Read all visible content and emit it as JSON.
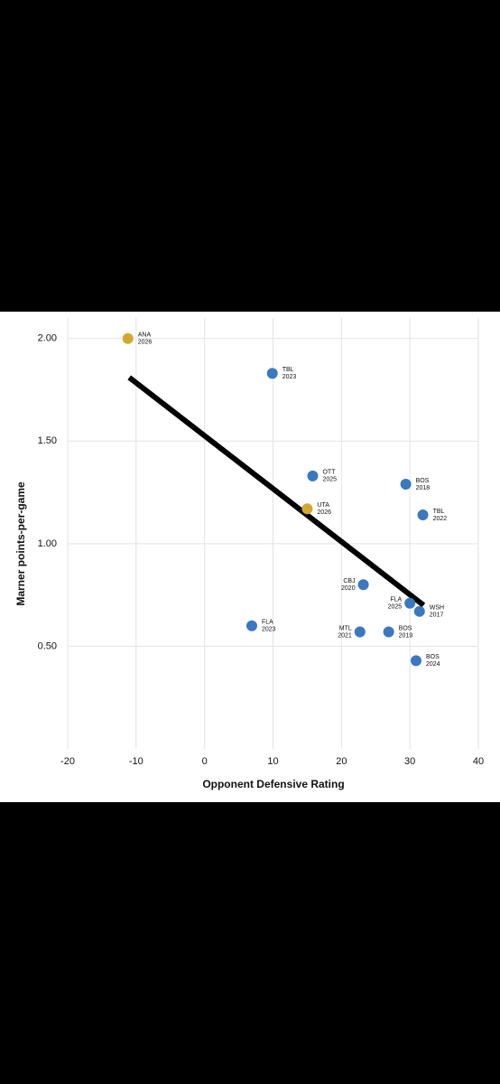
{
  "chart_data": {
    "type": "scatter",
    "x_label": "Opponent Defensive Rating",
    "y_label": "Marner points-per-game",
    "x": [
      -11.2,
      9.9,
      15.8,
      15.0,
      29.4,
      31.9,
      23.2,
      30.0,
      31.4,
      6.9,
      22.7,
      26.9,
      30.9
    ],
    "values": [
      2.0,
      1.83,
      1.33,
      1.17,
      1.29,
      1.14,
      0.8,
      0.71,
      0.67,
      0.6,
      0.57,
      0.57,
      0.43
    ],
    "teams": [
      "ANA",
      "TBL",
      "OTT",
      "UTA",
      "BOS",
      "TBL",
      "CBJ",
      "FLA",
      "WSH",
      "FLA",
      "MTL",
      "BOS",
      "BOS"
    ],
    "seasons": [
      "2026",
      "2023",
      "2025",
      "2026",
      "2018",
      "2022",
      "2020",
      "2025",
      "2017",
      "2023",
      "2021",
      "2019",
      "2024"
    ],
    "colors": [
      "#d4a82c",
      "#3a78bf",
      "#3a78bf",
      "#d4a82c",
      "#3a78bf",
      "#3a78bf",
      "#3a78bf",
      "#3a78bf",
      "#3a78bf",
      "#3a78bf",
      "#3a78bf",
      "#3a78bf",
      "#3a78bf"
    ],
    "trendline": {
      "x": [
        -11,
        32
      ],
      "y": [
        1.81,
        0.7
      ],
      "color": "#000000"
    },
    "xlim": [
      -20,
      40
    ],
    "xticks": [
      -20,
      -10,
      0,
      10,
      20,
      30,
      40
    ],
    "ylim": [
      0,
      2.1
    ],
    "yticks": [
      {
        "value": 0.5,
        "label": "0.50"
      },
      {
        "value": 1.0,
        "label": "1.00"
      },
      {
        "value": 1.5,
        "label": "1.50"
      },
      {
        "value": 2.0,
        "label": "2.00"
      }
    ],
    "grid": true
  }
}
